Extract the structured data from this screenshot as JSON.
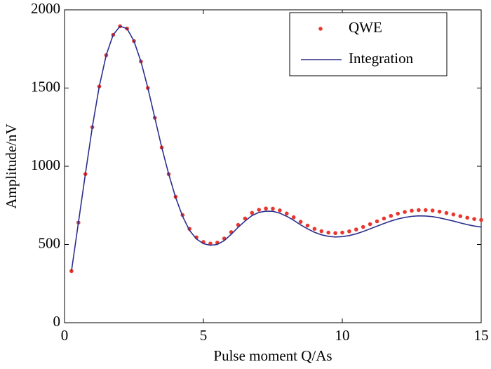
{
  "chart_data": {
    "type": "line",
    "xlabel": "Pulse moment Q/As",
    "ylabel": "Amplitude/nV",
    "x": [
      0.25,
      0.5,
      0.75,
      1.0,
      1.25,
      1.5,
      1.75,
      2.0,
      2.25,
      2.5,
      2.75,
      3.0,
      3.25,
      3.5,
      3.75,
      4.0,
      4.25,
      4.5,
      4.75,
      5.0,
      5.25,
      5.5,
      5.75,
      6.0,
      6.25,
      6.5,
      6.75,
      7.0,
      7.25,
      7.5,
      7.75,
      8.0,
      8.25,
      8.5,
      8.75,
      9.0,
      9.25,
      9.5,
      9.75,
      10.0,
      10.25,
      10.5,
      10.75,
      11.0,
      11.25,
      11.5,
      11.75,
      12.0,
      12.25,
      12.5,
      12.75,
      13.0,
      13.25,
      13.5,
      13.75,
      14.0,
      14.25,
      14.5,
      14.75,
      15.0
    ],
    "series": [
      {
        "name": "QWE",
        "mode": "markers",
        "color": "#e8372e",
        "values": [
          330,
          640,
          950,
          1250,
          1510,
          1710,
          1840,
          1895,
          1880,
          1800,
          1670,
          1500,
          1310,
          1120,
          950,
          805,
          688,
          600,
          546,
          516,
          506,
          512,
          538,
          579,
          625,
          666,
          702,
          722,
          730,
          729,
          718,
          698,
          674,
          645,
          621,
          600,
          585,
          576,
          573,
          576,
          584,
          596,
          612,
          630,
          648,
          666,
          683,
          697,
          708,
          716,
          720,
          720,
          717,
          710,
          701,
          692,
          681,
          671,
          663,
          657
        ]
      },
      {
        "name": "Integration",
        "mode": "line",
        "color": "#2b2f8c",
        "values": [
          330,
          640,
          950,
          1250,
          1510,
          1710,
          1840,
          1895,
          1880,
          1800,
          1670,
          1500,
          1310,
          1120,
          950,
          800,
          680,
          590,
          535,
          505,
          495,
          500,
          525,
          565,
          610,
          650,
          685,
          705,
          713,
          712,
          700,
          680,
          655,
          625,
          600,
          578,
          562,
          552,
          548,
          550,
          557,
          568,
          583,
          600,
          617,
          634,
          650,
          663,
          673,
          680,
          683,
          682,
          678,
          670,
          660,
          650,
          638,
          627,
          618,
          612
        ]
      }
    ],
    "xlim": [
      0,
      15
    ],
    "xticks": [
      0,
      5,
      10,
      15
    ],
    "ylim": [
      0,
      2000
    ],
    "yticks": [
      0,
      500,
      1000,
      1500,
      2000
    ],
    "legend": "upper right"
  }
}
